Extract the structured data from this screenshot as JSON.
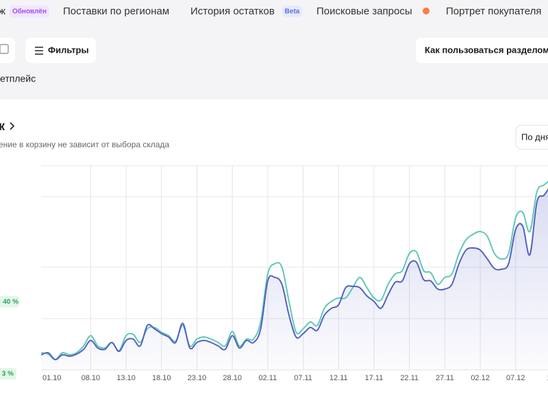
{
  "tabs": [
    {
      "label": "ж",
      "badge": "Обновлён"
    },
    {
      "label": "Поставки по регионам"
    },
    {
      "label": "История остатков",
      "badge": "Beta"
    },
    {
      "label": "Поисковые запросы"
    },
    {
      "label": "Портрет покупателя"
    }
  ],
  "toolbar": {
    "filters": "Фильтры",
    "help": "Как пользоваться разделом"
  },
  "marketplace": "етплейс",
  "card": {
    "title": "к",
    "subtitle": "ение в корзину не зависит от выбора склада",
    "period": "По дня",
    "badges": [
      "40 %",
      "3 %"
    ]
  },
  "chart_data": {
    "type": "line",
    "area": true,
    "categories": [
      "01.10",
      null,
      null,
      null,
      null,
      null,
      null,
      "08.10",
      null,
      null,
      null,
      null,
      "13.10",
      null,
      null,
      null,
      null,
      "18.10",
      null,
      null,
      null,
      null,
      "23.10",
      null,
      null,
      null,
      null,
      "28.10",
      null,
      null,
      null,
      null,
      "02.11",
      null,
      null,
      null,
      null,
      "07.11",
      null,
      null,
      null,
      null,
      "12.11",
      null,
      null,
      null,
      null,
      "17.11",
      null,
      null,
      null,
      null,
      "22.11",
      null,
      null,
      null,
      null,
      "27.11",
      null,
      null,
      null,
      null,
      "02.12",
      null,
      null,
      null,
      null,
      "07.12",
      null,
      null,
      null,
      null,
      "12"
    ],
    "ylim": [
      0,
      300
    ],
    "series": [
      {
        "color": "#5fc8b4",
        "values": [
          30,
          28,
          20,
          30,
          27,
          30,
          40,
          55,
          40,
          37,
          45,
          33,
          55,
          57,
          45,
          65,
          67,
          60,
          55,
          47,
          70,
          40,
          50,
          53,
          50,
          45,
          40,
          61,
          40,
          50,
          50,
          75,
          145,
          160,
          155,
          105,
          60,
          65,
          75,
          70,
          95,
          105,
          110,
          110,
          125,
          140,
          125,
          110,
          107,
          130,
          145,
          150,
          175,
          177,
          150,
          147,
          130,
          140,
          145,
          175,
          195,
          203,
          207,
          200,
          175,
          167,
          175,
          227,
          235,
          207,
          265,
          275,
          283
        ]
      },
      {
        "color": "#5361c2",
        "values": [
          27,
          30,
          20,
          27,
          25,
          28,
          35,
          48,
          37,
          35,
          45,
          32,
          48,
          50,
          40,
          70,
          65,
          58,
          53,
          45,
          73,
          37,
          45,
          48,
          45,
          40,
          35,
          55,
          37,
          48,
          45,
          65,
          135,
          140,
          130,
          85,
          53,
          58,
          67,
          63,
          85,
          95,
          100,
          125,
          127,
          125,
          113,
          105,
          95,
          115,
          133,
          135,
          160,
          162,
          137,
          135,
          123,
          123,
          130,
          160,
          180,
          183,
          180,
          167,
          153,
          152,
          160,
          210,
          215,
          173,
          250,
          260,
          275
        ]
      }
    ]
  }
}
